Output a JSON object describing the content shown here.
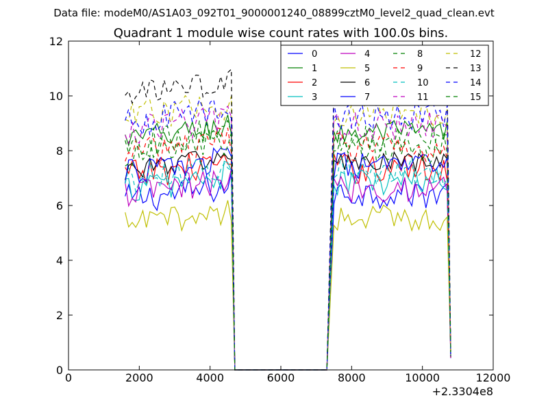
{
  "chart_data": {
    "type": "line",
    "suptitle": "Data file: modeM0/AS1A03_092T01_9000001240_08899cztM0_level2_quad_clean.evt",
    "title": "Quadrant 1 module wise count rates with 100.0s bins.",
    "xlabel": "",
    "ylabel": "",
    "x_offset_label": "+2.3304e8",
    "xlim": [
      0,
      12000
    ],
    "ylim": [
      0,
      12
    ],
    "x_ticks": [
      "0",
      "2000",
      "4000",
      "6000",
      "8000",
      "10000",
      "12000"
    ],
    "y_ticks": [
      "0",
      "2",
      "4",
      "6",
      "8",
      "10",
      "12"
    ],
    "grid": false,
    "legend_position": "upper-right",
    "legend_columns": 4,
    "segments": [
      {
        "name": "segment-1",
        "start": 1600,
        "end": 4600,
        "step": 100
      },
      {
        "name": "segment-2",
        "start": 7500,
        "end": 10700,
        "step": 100
      }
    ],
    "transitions": [
      {
        "x": 4700,
        "kind": "drop"
      },
      {
        "x": 7300,
        "kind": "gap-zero"
      },
      {
        "x": 10800,
        "kind": "drop"
      }
    ],
    "series": [
      {
        "name": "0",
        "color": "#0000ff",
        "style": "solid",
        "mean": 6.2,
        "noise": 0.35
      },
      {
        "name": "1",
        "color": "#008000",
        "style": "solid",
        "mean": 8.4,
        "noise": 0.3
      },
      {
        "name": "2",
        "color": "#ff0000",
        "style": "solid",
        "mean": 7.1,
        "noise": 0.35
      },
      {
        "name": "3",
        "color": "#00bfbf",
        "style": "solid",
        "mean": 6.6,
        "noise": 0.35
      },
      {
        "name": "4",
        "color": "#bf00bf",
        "style": "solid",
        "mean": 6.4,
        "noise": 0.35
      },
      {
        "name": "5",
        "color": "#bfbf00",
        "style": "solid",
        "mean": 5.3,
        "noise": 0.3
      },
      {
        "name": "6",
        "color": "#000000",
        "style": "solid",
        "mean": 7.3,
        "noise": 0.25
      },
      {
        "name": "7",
        "color": "#0000ff",
        "style": "solid",
        "mean": 7.2,
        "noise": 0.3
      },
      {
        "name": "8",
        "color": "#008000",
        "style": "dashed",
        "mean": 7.8,
        "noise": 0.35
      },
      {
        "name": "9",
        "color": "#ff0000",
        "style": "dashed",
        "mean": 7.9,
        "noise": 0.35
      },
      {
        "name": "10",
        "color": "#00bfbf",
        "style": "dashed",
        "mean": 7.0,
        "noise": 0.35
      },
      {
        "name": "11",
        "color": "#bf00bf",
        "style": "dashed",
        "mean": 8.7,
        "noise": 0.35
      },
      {
        "name": "12",
        "color": "#bfbf00",
        "style": "dashed",
        "mean": 9.2,
        "noise": 0.35
      },
      {
        "name": "13",
        "color": "#000000",
        "style": "dashed",
        "mean": 10.0,
        "noise": 0.3
      },
      {
        "name": "14",
        "color": "#0000ff",
        "style": "dashed",
        "mean": 9.0,
        "noise": 0.35
      },
      {
        "name": "15",
        "color": "#008000",
        "style": "dashed",
        "mean": 8.2,
        "noise": 0.35
      }
    ]
  }
}
